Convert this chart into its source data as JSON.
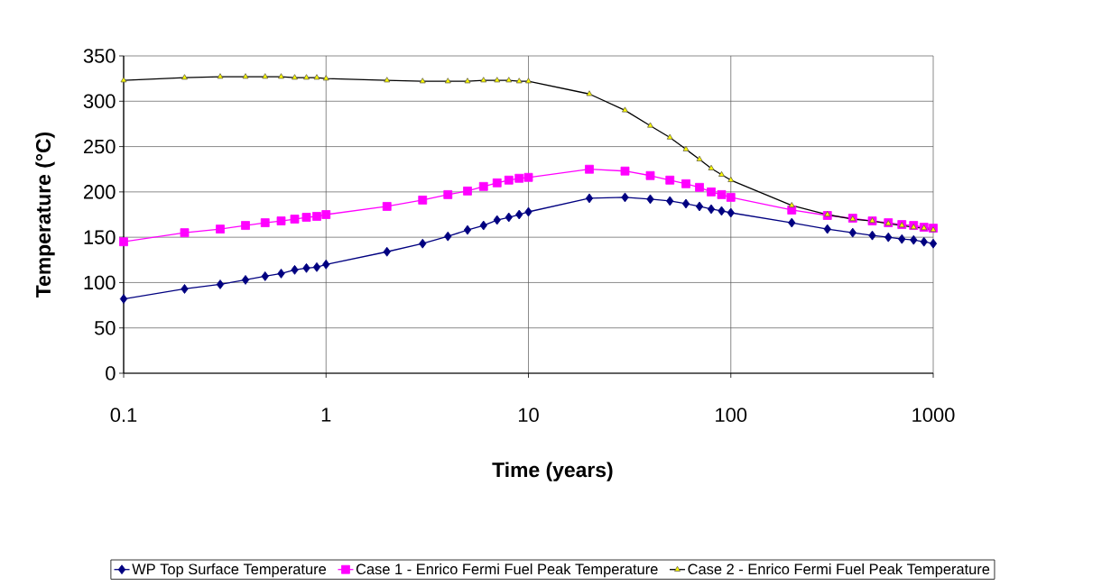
{
  "chart_data": {
    "type": "line",
    "xlabel": "Time (years)",
    "ylabel": "Temperature (°C)",
    "x": [
      0.1,
      0.2,
      0.3,
      0.4,
      0.5,
      0.6,
      0.7,
      0.8,
      0.9,
      1,
      2,
      3,
      4,
      5,
      6,
      7,
      8,
      9,
      10,
      20,
      30,
      40,
      50,
      60,
      70,
      80,
      90,
      100,
      200,
      300,
      400,
      500,
      600,
      700,
      800,
      900,
      1000
    ],
    "series": [
      {
        "name": "WP Top Surface Temperature",
        "color": "#000080",
        "marker": "diamond",
        "values": [
          82,
          93,
          98,
          103,
          107,
          110,
          114,
          116,
          117,
          120,
          134,
          143,
          151,
          158,
          163,
          169,
          172,
          175,
          178,
          193,
          194,
          192,
          190,
          187,
          184,
          181,
          179,
          177,
          166,
          159,
          155,
          152,
          150,
          148,
          147,
          145,
          143
        ]
      },
      {
        "name": "Case 1 - Enrico Fermi Fuel Peak Temperature",
        "color": "#ff00ff",
        "marker": "square",
        "values": [
          145,
          155,
          159,
          163,
          166,
          168,
          170,
          172,
          173,
          175,
          184,
          191,
          197,
          201,
          206,
          210,
          213,
          215,
          216,
          225,
          223,
          218,
          213,
          209,
          205,
          200,
          197,
          194,
          180,
          174,
          171,
          168,
          166,
          164,
          163,
          161,
          160
        ]
      },
      {
        "name": "Case 2 - Enrico Fermi Fuel Peak Temperature",
        "color": "#ffff00",
        "marker": "triangle",
        "values": [
          323,
          326,
          327,
          327,
          327,
          327,
          326,
          326,
          326,
          325,
          323,
          322,
          322,
          322,
          323,
          323,
          323,
          322,
          322,
          308,
          290,
          273,
          260,
          247,
          236,
          226,
          219,
          213,
          185,
          175,
          170,
          168,
          165,
          163,
          161,
          160,
          158
        ]
      }
    ],
    "log": "x",
    "xlim": [
      0.1,
      1000
    ],
    "xticks": [
      0.1,
      1,
      10,
      100,
      1000
    ],
    "ylim": [
      0,
      350
    ],
    "yticks": [
      0,
      50,
      100,
      150,
      200,
      250,
      300,
      350
    ],
    "grid": true,
    "legend": "bottom"
  }
}
